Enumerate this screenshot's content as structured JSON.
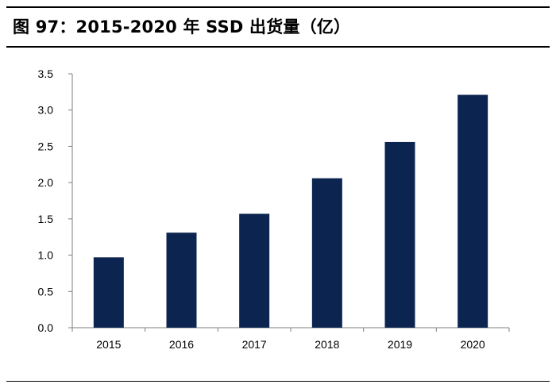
{
  "header": {
    "title": "图 97：2015-2020 年 SSD 出货量（亿）"
  },
  "colors": {
    "bar": "#0b2550",
    "axis": "#7f7f7f",
    "text": "#000000"
  },
  "chart_data": {
    "type": "bar",
    "title": "图 97：2015-2020 年 SSD 出货量（亿）",
    "categories": [
      "2015",
      "2016",
      "2017",
      "2018",
      "2019",
      "2020"
    ],
    "values": [
      0.97,
      1.31,
      1.57,
      2.06,
      2.56,
      3.21
    ],
    "ylim": [
      0,
      3.5
    ],
    "yticks": [
      "0.0",
      "0.5",
      "1.0",
      "1.5",
      "2.0",
      "2.5",
      "3.0",
      "3.5"
    ],
    "xlabel": "",
    "ylabel": "",
    "grid": false,
    "legend": "none"
  }
}
